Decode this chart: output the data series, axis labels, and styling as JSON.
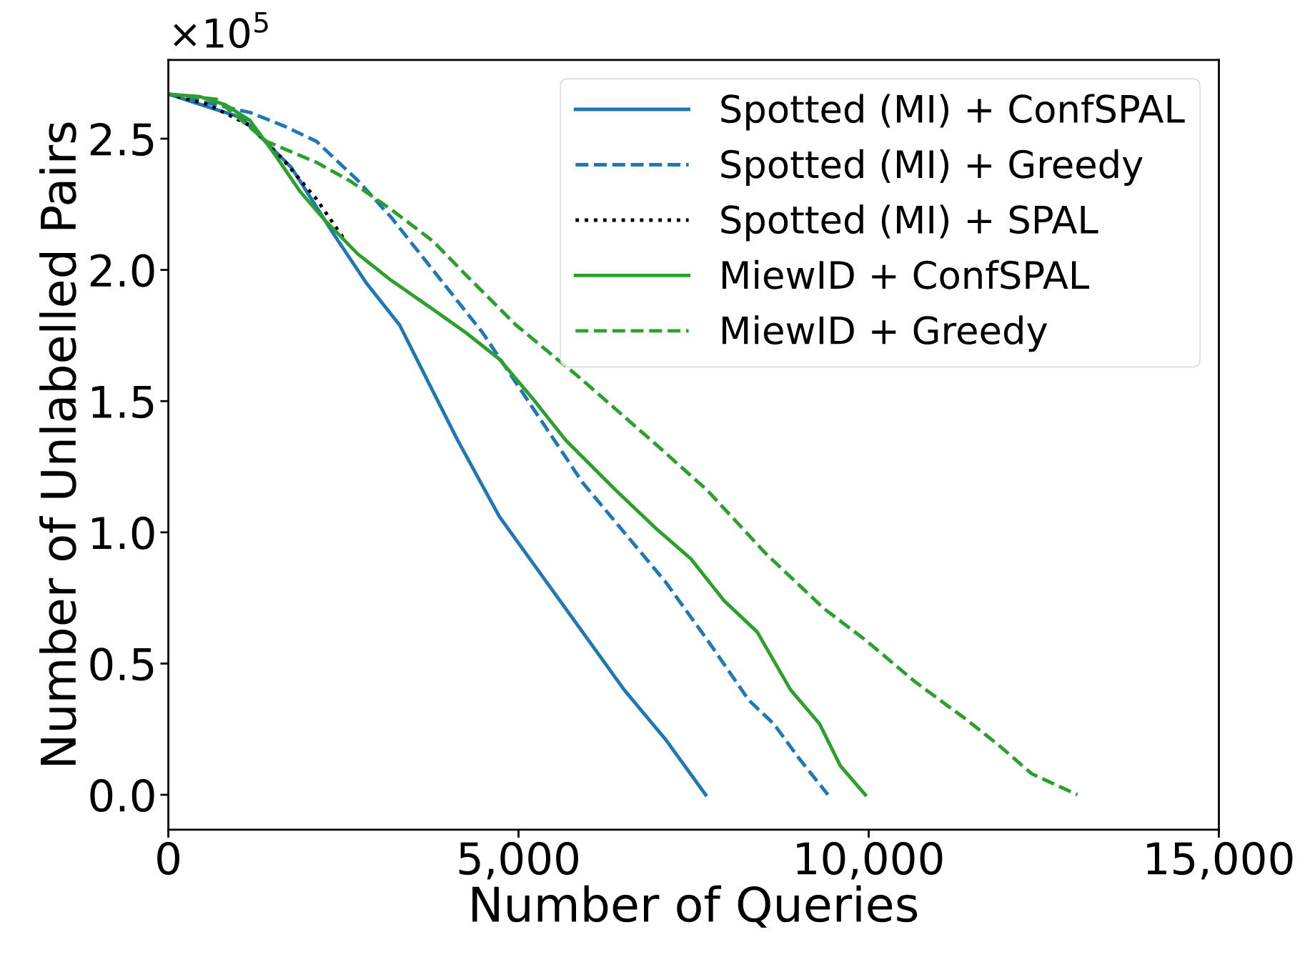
{
  "chart_data": {
    "type": "line",
    "xlabel": "Number of Queries",
    "ylabel": "Number of Unlabelled Pairs",
    "annotations": [
      "×10$^{5}$"
    ],
    "xlim": [
      0,
      15000
    ],
    "xticks": [
      {
        "value": 0,
        "label": "0"
      },
      {
        "value": 5000,
        "label": "5,000"
      },
      {
        "value": 10000,
        "label": "10,000"
      },
      {
        "value": 15000,
        "label": "15,000"
      }
    ],
    "ylim": [
      -0.133,
      2.8
    ],
    "yticks": [
      {
        "value": 0,
        "label": "0.0"
      },
      {
        "value": 0.5,
        "label": "0.5"
      },
      {
        "value": 1.0,
        "label": "1.0"
      },
      {
        "value": 1.5,
        "label": "1.5"
      },
      {
        "value": 2.0,
        "label": "2.0"
      },
      {
        "value": 2.5,
        "label": "2.5"
      }
    ],
    "grid": false,
    "legend": "top right",
    "marker": "none",
    "series": [
      {
        "name": "Spotted (MI) + ConfSPAL",
        "color": "#1f77b4",
        "line_style": "solid",
        "x": [
          0,
          1045,
          1758,
          2352,
          2827,
          3302,
          3717,
          4133,
          4727,
          5321,
          5915,
          6508,
          7102,
          7672
        ],
        "values": [
          2.67,
          2.58,
          2.39,
          2.14,
          1.95,
          1.79,
          1.57,
          1.35,
          1.06,
          0.84,
          0.62,
          0.4,
          0.21,
          0.0
        ]
      },
      {
        "name": "Spotted (MI) + Greedy",
        "color": "#1f77b4",
        "line_style": "dashed",
        "x": [
          0,
          1164,
          1639,
          2114,
          2708,
          3183,
          3539,
          4014,
          4489,
          4964,
          5439,
          5914,
          6508,
          7102,
          7696,
          8290,
          8646,
          9002,
          9418
        ],
        "values": [
          2.67,
          2.6,
          2.55,
          2.49,
          2.34,
          2.2,
          2.08,
          1.92,
          1.76,
          1.57,
          1.38,
          1.19,
          1.0,
          0.81,
          0.59,
          0.36,
          0.27,
          0.14,
          0.0
        ]
      },
      {
        "name": "Spotted (MI) + SPAL",
        "color": "#000000",
        "line_style": "dotted",
        "x": [
          0,
          570,
          1164,
          1639,
          2114,
          2530
        ],
        "values": [
          2.67,
          2.63,
          2.55,
          2.42,
          2.27,
          2.11
        ]
      },
      {
        "name": "MiewID + ConfSPAL",
        "color": "#2ca02c",
        "line_style": "solid",
        "x": [
          0,
          451,
          808,
          1164,
          1520,
          1877,
          2233,
          2708,
          3183,
          3777,
          4252,
          4727,
          5202,
          5677,
          6390,
          6983,
          7458,
          7933,
          8409,
          8884,
          9299,
          9596,
          9952
        ],
        "values": [
          2.67,
          2.66,
          2.63,
          2.57,
          2.44,
          2.3,
          2.19,
          2.06,
          1.96,
          1.85,
          1.76,
          1.66,
          1.51,
          1.35,
          1.16,
          1.01,
          0.9,
          0.74,
          0.62,
          0.4,
          0.27,
          0.11,
          0.0
        ]
      },
      {
        "name": "MiewID + Greedy",
        "color": "#2ca02c",
        "line_style": "dashed",
        "x": [
          0,
          689,
          1401,
          2114,
          2589,
          3183,
          3777,
          4252,
          4964,
          5914,
          6983,
          7696,
          8527,
          9359,
          9952,
          10665,
          11378,
          11853,
          12328,
          12981
        ],
        "values": [
          2.67,
          2.65,
          2.49,
          2.41,
          2.34,
          2.23,
          2.11,
          1.98,
          1.79,
          1.58,
          1.33,
          1.16,
          0.92,
          0.71,
          0.59,
          0.43,
          0.29,
          0.19,
          0.08,
          0.0
        ]
      }
    ]
  }
}
